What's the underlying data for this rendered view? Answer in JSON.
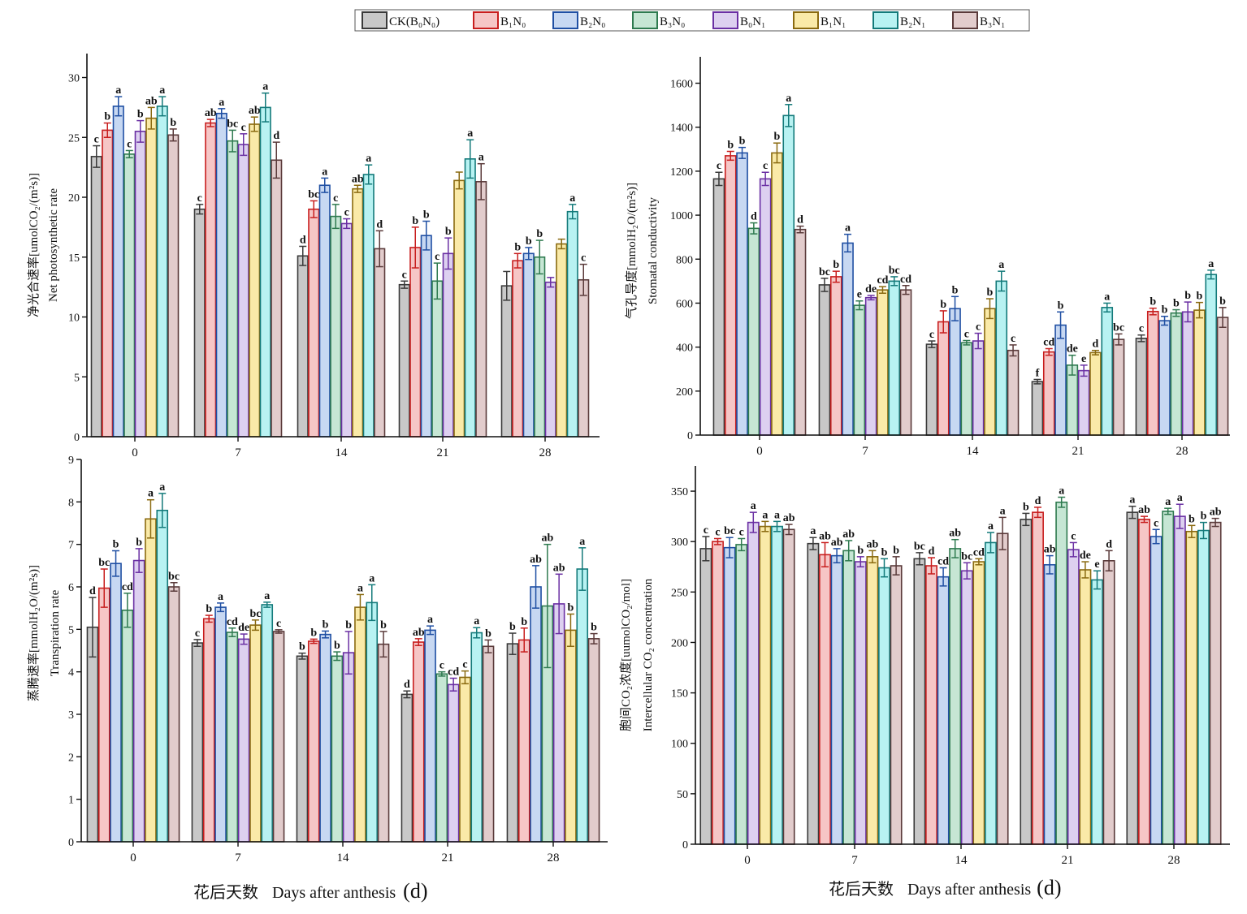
{
  "legend": [
    {
      "label": "CK(B₀N₀)",
      "color": "#c8c8c8",
      "edge": "#3a3a3a"
    },
    {
      "label": "B₁N₀",
      "color": "#f6c6c6",
      "edge": "#c81e1e"
    },
    {
      "label": "B₂N₀",
      "color": "#c7d8f2",
      "edge": "#1f4fa3"
    },
    {
      "label": "B₃N₀",
      "color": "#c6e6d4",
      "edge": "#2e7a4f"
    },
    {
      "label": "B₀N₁",
      "color": "#ddd0f0",
      "edge": "#6a2fa3"
    },
    {
      "label": "B₁N₁",
      "color": "#faeaa8",
      "edge": "#8a6a10"
    },
    {
      "label": "B₂N₁",
      "color": "#b8f2f2",
      "edge": "#137a7a"
    },
    {
      "label": "B₃N₁",
      "color": "#e2cccc",
      "edge": "#5a3a3a"
    }
  ],
  "xlabels": {
    "left": {
      "zh": "花后天数",
      "en": "Days after anthesis",
      "unit": "(d)"
    },
    "right": {
      "zh": "花后天数",
      "en": "Days after anthesis",
      "unit": "(d)"
    }
  },
  "chart_data": [
    {
      "type": "bar",
      "ylabel_zh": "净光合速率[umolCO₂/(m²s)]",
      "ylabel_en": "Net photosynthetic rate",
      "categories": [
        "0",
        "7",
        "14",
        "21",
        "28"
      ],
      "ylim": [
        0,
        32
      ],
      "yticks": [
        0,
        5,
        10,
        15,
        20,
        25,
        30
      ],
      "series": [
        {
          "name": "CK(B₀N₀)",
          "values": [
            23.4,
            19.0,
            15.1,
            12.7,
            12.6
          ],
          "err": [
            0.9,
            0.4,
            0.8,
            0.3,
            1.2
          ],
          "labels": [
            "c",
            "c",
            "d",
            "c",
            ""
          ]
        },
        {
          "name": "B₁N₀",
          "values": [
            25.6,
            26.2,
            19.0,
            15.8,
            14.7
          ],
          "err": [
            0.6,
            0.3,
            0.7,
            1.7,
            0.6
          ],
          "labels": [
            "b",
            "ab",
            "bc",
            "b",
            "b"
          ]
        },
        {
          "name": "B₂N₀",
          "values": [
            27.6,
            27.0,
            21.0,
            16.8,
            15.3
          ],
          "err": [
            0.8,
            0.4,
            0.6,
            1.2,
            0.5
          ],
          "labels": [
            "a",
            "a",
            "a",
            "b",
            "b"
          ]
        },
        {
          "name": "B₃N₀",
          "values": [
            23.6,
            24.7,
            18.4,
            13.0,
            15.0
          ],
          "err": [
            0.3,
            0.9,
            1.0,
            1.5,
            1.4
          ],
          "labels": [
            "c",
            "bc",
            "c",
            "c",
            "b"
          ]
        },
        {
          "name": "B₀N₁",
          "values": [
            25.5,
            24.4,
            17.8,
            15.3,
            12.9
          ],
          "err": [
            0.9,
            0.9,
            0.4,
            1.3,
            0.4
          ],
          "labels": [
            "b",
            "c",
            "c",
            "b",
            ""
          ]
        },
        {
          "name": "B₁N₁",
          "values": [
            26.6,
            26.1,
            20.7,
            21.4,
            16.1
          ],
          "err": [
            0.9,
            0.6,
            0.3,
            0.7,
            0.4
          ],
          "labels": [
            "ab",
            "ab",
            "ab",
            "",
            ""
          ]
        },
        {
          "name": "B₂N₁",
          "values": [
            27.6,
            27.5,
            21.9,
            23.2,
            18.8
          ],
          "err": [
            0.8,
            1.2,
            0.8,
            1.6,
            0.6
          ],
          "labels": [
            "a",
            "a",
            "a",
            "a",
            "a"
          ]
        },
        {
          "name": "B₃N₁",
          "values": [
            25.2,
            23.1,
            15.7,
            21.3,
            13.1
          ],
          "err": [
            0.5,
            1.5,
            1.5,
            1.5,
            1.3
          ],
          "labels": [
            "b",
            "d",
            "d",
            "a",
            "c"
          ]
        }
      ]
    },
    {
      "type": "bar",
      "ylabel_zh": "气孔导度[mmolH₂O/(m²s)]",
      "ylabel_en": "Stomatal conductivity",
      "categories": [
        "0",
        "7",
        "14",
        "21",
        "28"
      ],
      "ylim": [
        0,
        1720
      ],
      "yticks": [
        0,
        200,
        400,
        600,
        800,
        1000,
        1200,
        1400,
        1600
      ],
      "series": [
        {
          "name": "CK(B₀N₀)",
          "values": [
            1165,
            683,
            413,
            243,
            440
          ],
          "err": [
            30,
            30,
            15,
            10,
            15
          ],
          "labels": [
            "c",
            "bc",
            "c",
            "f",
            "c"
          ]
        },
        {
          "name": "B₁N₀",
          "values": [
            1270,
            720,
            515,
            378,
            562
          ],
          "err": [
            20,
            25,
            50,
            15,
            15
          ],
          "labels": [
            "b",
            "b",
            "b",
            "cd",
            "b"
          ]
        },
        {
          "name": "B₂N₀",
          "values": [
            1283,
            873,
            575,
            500,
            520
          ],
          "err": [
            25,
            40,
            55,
            60,
            20
          ],
          "labels": [
            "b",
            "a",
            "b",
            "b",
            "b"
          ]
        },
        {
          "name": "B₃N₀",
          "values": [
            940,
            590,
            420,
            318,
            555
          ],
          "err": [
            25,
            20,
            10,
            45,
            15
          ],
          "labels": [
            "d",
            "e",
            "c",
            "de",
            "b"
          ]
        },
        {
          "name": "B₀N₁",
          "values": [
            1165,
            625,
            428,
            293,
            560
          ],
          "err": [
            30,
            10,
            35,
            25,
            45
          ],
          "labels": [
            "c",
            "de",
            "c",
            "e",
            "b"
          ]
        },
        {
          "name": "B₁N₁",
          "values": [
            1283,
            660,
            575,
            375,
            568
          ],
          "err": [
            45,
            15,
            45,
            10,
            35
          ],
          "labels": [
            "b",
            "cd",
            "b",
            "d",
            "b"
          ]
        },
        {
          "name": "B₂N₁",
          "values": [
            1453,
            700,
            700,
            580,
            730
          ],
          "err": [
            50,
            20,
            45,
            20,
            20
          ],
          "labels": [
            "a",
            "bc",
            "a",
            "a",
            "a"
          ]
        },
        {
          "name": "B₃N₁",
          "values": [
            935,
            660,
            385,
            435,
            535
          ],
          "err": [
            15,
            20,
            25,
            25,
            45
          ],
          "labels": [
            "d",
            "cd",
            "c",
            "bc",
            "b"
          ]
        }
      ]
    },
    {
      "type": "bar",
      "ylabel_zh": "蒸腾速率[mmolH₂O/(m²s)]",
      "ylabel_en": "Transpiration rate",
      "categories": [
        "0",
        "7",
        "14",
        "21",
        "28"
      ],
      "ylim": [
        0,
        9
      ],
      "yticks": [
        0,
        1,
        2,
        3,
        4,
        5,
        6,
        7,
        8,
        9
      ],
      "series": [
        {
          "name": "CK(B₀N₀)",
          "values": [
            5.05,
            4.68,
            4.37,
            3.47,
            4.66
          ],
          "err": [
            0.7,
            0.08,
            0.07,
            0.08,
            0.25
          ],
          "labels": [
            "d",
            "c",
            "b",
            "d",
            "b"
          ]
        },
        {
          "name": "B₁N₀",
          "values": [
            5.97,
            5.25,
            4.72,
            4.7,
            4.75
          ],
          "err": [
            0.45,
            0.08,
            0.05,
            0.08,
            0.28
          ],
          "labels": [
            "bc",
            "b",
            "b",
            "ab",
            "b"
          ]
        },
        {
          "name": "B₂N₀",
          "values": [
            6.55,
            5.52,
            4.88,
            4.98,
            6.0
          ],
          "err": [
            0.3,
            0.1,
            0.08,
            0.1,
            0.5
          ],
          "labels": [
            "b",
            "a",
            "b",
            "a",
            "ab"
          ]
        },
        {
          "name": "B₃N₀",
          "values": [
            5.45,
            4.93,
            4.37,
            3.95,
            5.55
          ],
          "err": [
            0.4,
            0.1,
            0.1,
            0.05,
            1.45
          ],
          "labels": [
            "cd",
            "cd",
            "b",
            "c",
            "ab"
          ]
        },
        {
          "name": "B₀N₁",
          "values": [
            6.62,
            4.77,
            4.45,
            3.7,
            5.6
          ],
          "err": [
            0.28,
            0.12,
            0.5,
            0.15,
            0.7
          ],
          "labels": [
            "b",
            "de",
            "b",
            "cd",
            "ab"
          ]
        },
        {
          "name": "B₁N₁",
          "values": [
            7.6,
            5.1,
            5.52,
            3.87,
            4.98
          ],
          "err": [
            0.45,
            0.12,
            0.3,
            0.15,
            0.38
          ],
          "labels": [
            "a",
            "bc",
            "a",
            "c",
            "b"
          ]
        },
        {
          "name": "B₂N₁",
          "values": [
            7.8,
            5.58,
            5.63,
            4.92,
            6.42
          ],
          "err": [
            0.4,
            0.06,
            0.42,
            0.12,
            0.5
          ],
          "labels": [
            "a",
            "a",
            "a",
            "a",
            "a"
          ]
        },
        {
          "name": "B₃N₁",
          "values": [
            6.0,
            4.95,
            4.65,
            4.6,
            4.78
          ],
          "err": [
            0.1,
            0.04,
            0.3,
            0.15,
            0.12
          ],
          "labels": [
            "bc",
            "c",
            "b",
            "b",
            "b"
          ]
        }
      ]
    },
    {
      "type": "bar",
      "ylabel_zh": "胞间CO₂浓度[uumolCO₂/mol]",
      "ylabel_en": "Intercellular CO₂ concentration",
      "categories": [
        "0",
        "7",
        "14",
        "21",
        "28"
      ],
      "ylim": [
        0,
        375
      ],
      "yticks": [
        0,
        50,
        100,
        150,
        200,
        250,
        300,
        350
      ],
      "series": [
        {
          "name": "CK(B₀N₀)",
          "values": [
            293,
            298,
            283,
            322,
            329
          ],
          "err": [
            12,
            6,
            6,
            6,
            6
          ],
          "labels": [
            "c",
            "a",
            "bc",
            "b",
            "a"
          ]
        },
        {
          "name": "B₁N₀",
          "values": [
            300,
            287,
            276,
            329,
            322
          ],
          "err": [
            3,
            12,
            8,
            5,
            3
          ],
          "labels": [
            "c",
            "ab",
            "d",
            "d",
            "ab"
          ]
        },
        {
          "name": "B₂N₀",
          "values": [
            294,
            286,
            265,
            277,
            305
          ],
          "err": [
            10,
            7,
            9,
            9,
            7
          ],
          "labels": [
            "bc",
            "ab",
            "cd",
            "ab",
            "c"
          ]
        },
        {
          "name": "B₃N₀",
          "values": [
            297,
            291,
            293,
            339,
            330
          ],
          "err": [
            6,
            10,
            9,
            5,
            3
          ],
          "labels": [
            "c",
            "ab",
            "ab",
            "a",
            "a"
          ]
        },
        {
          "name": "B₀N₁",
          "values": [
            319,
            280,
            271,
            292,
            325
          ],
          "err": [
            10,
            5,
            8,
            7,
            12
          ],
          "labels": [
            "a",
            "b",
            "bc",
            "c",
            "a"
          ]
        },
        {
          "name": "B₁N₁",
          "values": [
            315,
            285,
            280,
            272,
            310
          ],
          "err": [
            5,
            6,
            3,
            8,
            6
          ],
          "labels": [
            "a",
            "ab",
            "cd",
            "de",
            "b"
          ]
        },
        {
          "name": "B₂N₁",
          "values": [
            315,
            274,
            299,
            262,
            311
          ],
          "err": [
            5,
            9,
            10,
            9,
            8
          ],
          "labels": [
            "a",
            "b",
            "a",
            "e",
            "b"
          ]
        },
        {
          "name": "B₃N₁",
          "values": [
            312,
            276,
            308,
            281,
            319
          ],
          "err": [
            5,
            9,
            16,
            10,
            4
          ],
          "labels": [
            "ab",
            "b",
            "a",
            "d",
            "ab"
          ]
        }
      ]
    }
  ]
}
